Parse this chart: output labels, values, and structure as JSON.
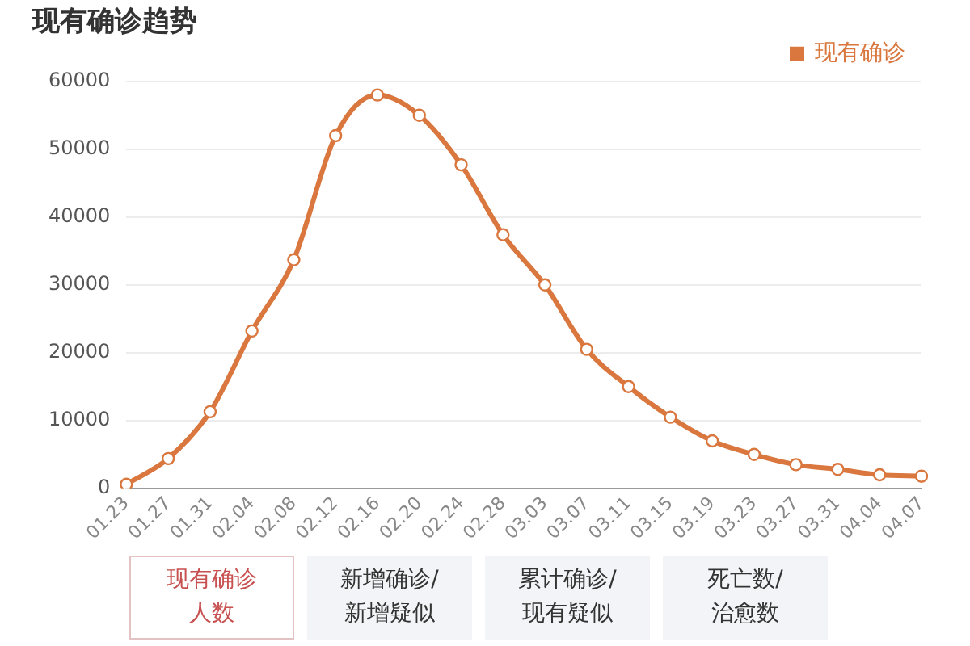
{
  "chart_data": {
    "type": "line",
    "title": "现有确诊趋势",
    "categories": [
      "01.23",
      "01.27",
      "01.31",
      "02.04",
      "02.08",
      "02.12",
      "02.16",
      "02.20",
      "02.24",
      "02.28",
      "03.03",
      "03.07",
      "03.11",
      "03.15",
      "03.19",
      "03.23",
      "03.27",
      "03.31",
      "04.04",
      "04.07"
    ],
    "series": [
      {
        "name": "现有确诊",
        "color": "#d9773e",
        "values": [
          600,
          4400,
          11300,
          23200,
          33700,
          52000,
          58000,
          55000,
          47700,
          37400,
          30000,
          20500,
          15000,
          10500,
          7000,
          5000,
          3500,
          2800,
          2000,
          1800
        ]
      }
    ],
    "ylim": [
      0,
      60000
    ],
    "yticks": [
      0,
      10000,
      20000,
      30000,
      40000,
      50000,
      60000
    ],
    "grid": "y",
    "legend": "top right",
    "marker": "circle",
    "annotations": [
      "现有确诊人数",
      "新增确诊/新增疑似",
      "累计确诊/现有疑似",
      "死亡数/治愈数"
    ]
  }
}
